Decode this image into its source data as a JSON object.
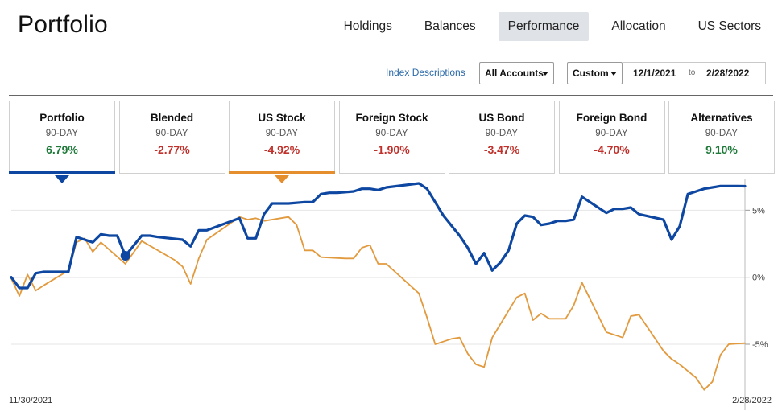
{
  "header": {
    "title": "Portfolio",
    "tabs": [
      {
        "label": "Holdings",
        "active": false
      },
      {
        "label": "Balances",
        "active": false
      },
      {
        "label": "Performance",
        "active": true
      },
      {
        "label": "Allocation",
        "active": false
      },
      {
        "label": "US Sectors",
        "active": false
      }
    ]
  },
  "controls": {
    "index_link": "Index Descriptions",
    "accounts": "All Accounts",
    "range": "Custom",
    "date_from": "12/1/2021",
    "date_to_label": "to",
    "date_to": "2/28/2022"
  },
  "cards": [
    {
      "name": "Portfolio",
      "period": "90-DAY",
      "value": "6.79%",
      "trend": "pos",
      "selected_color": "#0d47a1"
    },
    {
      "name": "Blended",
      "period": "90-DAY",
      "value": "-2.77%",
      "trend": "neg"
    },
    {
      "name": "US Stock",
      "period": "90-DAY",
      "value": "-4.92%",
      "trend": "neg",
      "selected_color": "#e58e2e"
    },
    {
      "name": "Foreign Stock",
      "period": "90-DAY",
      "value": "-1.90%",
      "trend": "neg"
    },
    {
      "name": "US Bond",
      "period": "90-DAY",
      "value": "-3.47%",
      "trend": "neg"
    },
    {
      "name": "Foreign Bond",
      "period": "90-DAY",
      "value": "-4.70%",
      "trend": "neg"
    },
    {
      "name": "Alternatives",
      "period": "90-DAY",
      "value": "9.10%",
      "trend": "pos"
    }
  ],
  "chart_data": {
    "type": "line",
    "x_start": "11/30/2021",
    "x_end": "2/28/2022",
    "ylim": [
      -8.6,
      7.0
    ],
    "yticks": [
      {
        "value": 5,
        "label": "5%"
      },
      {
        "value": 0,
        "label": "0%"
      },
      {
        "value": -5,
        "label": "-5%"
      }
    ],
    "grid": true,
    "series": [
      {
        "color": "#0d47a1",
        "x": [
          0,
          1,
          2,
          3,
          4,
          7,
          8,
          9,
          10,
          11,
          12,
          13,
          14,
          16,
          17,
          18,
          21,
          22,
          23,
          24,
          28,
          29,
          30,
          31,
          32,
          33,
          34,
          36,
          37,
          38,
          39,
          40,
          42,
          43,
          44,
          45,
          46,
          50,
          51,
          52,
          53,
          55,
          56,
          57,
          58,
          59,
          60,
          61,
          62,
          63,
          64,
          65,
          66,
          67,
          68,
          69,
          70,
          73,
          74,
          75,
          76,
          77,
          80,
          81,
          82,
          83,
          84,
          85,
          86,
          87,
          88,
          89,
          90
        ],
        "values": [
          0,
          -0.8,
          -0.8,
          0.3,
          0.4,
          0.4,
          3.0,
          2.8,
          2.6,
          3.2,
          3.1,
          3.1,
          1.6,
          3.1,
          3.1,
          3.0,
          2.8,
          2.3,
          3.5,
          3.5,
          4.4,
          2.9,
          2.9,
          4.7,
          5.5,
          5.5,
          5.5,
          5.6,
          5.6,
          6.2,
          6.3,
          6.3,
          6.4,
          6.6,
          6.6,
          6.5,
          6.7,
          7.0,
          6.6,
          5.6,
          4.6,
          3.1,
          2.2,
          1.0,
          1.8,
          0.5,
          1.1,
          2.0,
          4.0,
          4.6,
          4.5,
          3.9,
          4.0,
          4.2,
          4.2,
          4.3,
          6.0,
          4.8,
          5.1,
          5.1,
          5.2,
          4.7,
          4.3,
          2.8,
          3.8,
          6.2,
          6.4,
          6.6,
          6.7,
          6.8,
          6.8,
          6.8,
          6.79
        ],
        "marker": {
          "x": 14,
          "value": 1.6
        }
      },
      {
        "color": "#e29a3e",
        "x": [
          0,
          1,
          2,
          3,
          4,
          7,
          8,
          9,
          10,
          11,
          14,
          16,
          20,
          21,
          22,
          23,
          24,
          28,
          29,
          30,
          31,
          34,
          35,
          36,
          37,
          38,
          41,
          42,
          43,
          44,
          45,
          46,
          50,
          51,
          52,
          53,
          54,
          55,
          56,
          57,
          58,
          59,
          60,
          61,
          62,
          63,
          64,
          65,
          66,
          68,
          69,
          70,
          73,
          74,
          75,
          76,
          77,
          80,
          81,
          82,
          83,
          84,
          85,
          86,
          87,
          88,
          89,
          90
        ],
        "values": [
          -0.1,
          -1.4,
          0.2,
          -1.0,
          -0.6,
          0.5,
          2.6,
          2.9,
          1.9,
          2.6,
          1.0,
          2.7,
          1.3,
          0.8,
          -0.5,
          1.4,
          2.8,
          4.5,
          4.3,
          4.4,
          4.2,
          4.5,
          3.9,
          2.0,
          2.0,
          1.5,
          1.4,
          1.4,
          2.2,
          2.4,
          1.0,
          1.0,
          -1.2,
          -3.0,
          -5.0,
          -4.8,
          -4.6,
          -4.5,
          -5.7,
          -6.5,
          -6.7,
          -4.5,
          -3.5,
          -2.5,
          -1.5,
          -1.2,
          -3.2,
          -2.7,
          -3.1,
          -3.1,
          -2.1,
          -0.4,
          -4.1,
          -4.3,
          -4.5,
          -2.9,
          -2.8,
          -5.5,
          -6.1,
          -6.5,
          -7.0,
          -7.5,
          -8.4,
          -7.8,
          -5.8,
          -5.0,
          -4.95,
          -4.92
        ]
      }
    ]
  }
}
